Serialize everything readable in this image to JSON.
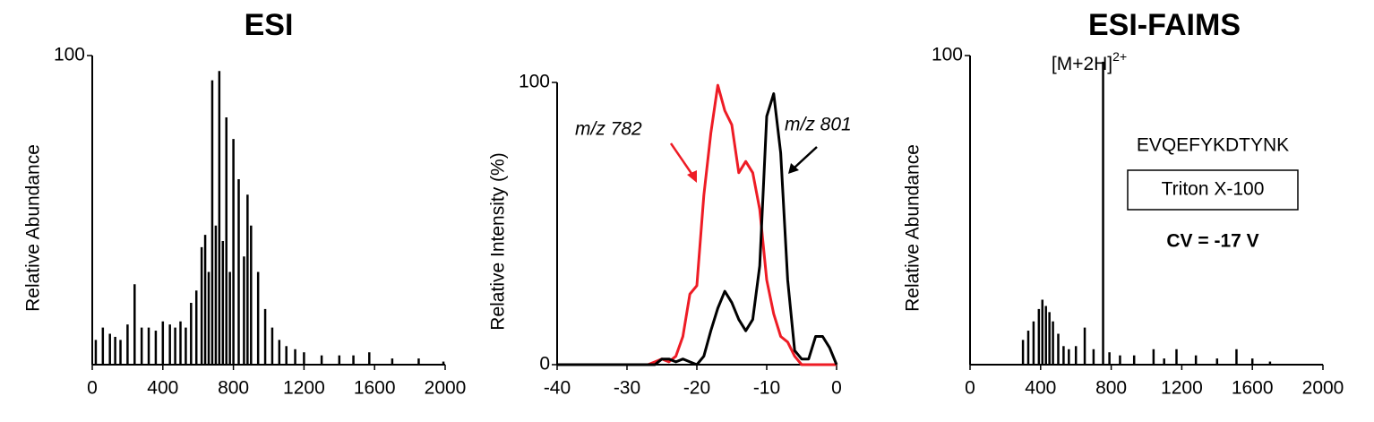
{
  "chart_data": [
    {
      "type": "spectrum",
      "title": "ESI",
      "ylabel": "Relative Abundance",
      "color": "#000000",
      "x": [
        20,
        60,
        100,
        130,
        160,
        200,
        240,
        280,
        320,
        360,
        400,
        440,
        470,
        500,
        530,
        560,
        590,
        620,
        640,
        660,
        680,
        700,
        720,
        740,
        760,
        780,
        800,
        830,
        860,
        880,
        900,
        940,
        980,
        1020,
        1060,
        1100,
        1150,
        1200,
        1300,
        1400,
        1480,
        1570,
        1700,
        1850,
        1990
      ],
      "values": [
        8,
        12,
        10,
        9,
        8,
        13,
        26,
        12,
        12,
        11,
        14,
        13,
        12,
        14,
        12,
        20,
        24,
        38,
        42,
        30,
        92,
        45,
        95,
        40,
        80,
        30,
        73,
        60,
        35,
        55,
        45,
        30,
        18,
        12,
        8,
        6,
        5,
        4,
        3,
        3,
        3,
        4,
        2,
        2,
        1
      ],
      "xlim": [
        0,
        2000
      ],
      "xticks": [
        0,
        400,
        800,
        1200,
        1600,
        2000
      ],
      "ylim": [
        0,
        100
      ],
      "yticks": [
        100
      ]
    },
    {
      "type": "line",
      "ylabel": "Relative Intensity (%)",
      "x": [
        -40,
        -39,
        -38,
        -37,
        -36,
        -35,
        -34,
        -33,
        -32,
        -31,
        -30,
        -29,
        -28,
        -27,
        -26,
        -25,
        -24,
        -23,
        -22,
        -21,
        -20,
        -19,
        -18,
        -17,
        -16,
        -15,
        -14,
        -13,
        -12,
        -11,
        -10,
        -9,
        -8,
        -7,
        -6,
        -5,
        -4,
        -3,
        -2,
        -1,
        0
      ],
      "series": [
        {
          "name": "m/z 782",
          "color": "#ee1c25",
          "values": [
            0,
            0,
            0,
            0,
            0,
            0,
            0,
            0,
            0,
            0,
            0,
            0,
            0,
            0,
            1,
            2,
            1,
            3,
            10,
            25,
            28,
            60,
            82,
            99,
            90,
            85,
            68,
            72,
            68,
            55,
            30,
            18,
            10,
            8,
            3,
            0,
            0,
            0,
            0,
            0,
            0
          ]
        },
        {
          "name": "m/z 801",
          "color": "#000000",
          "values": [
            0,
            0,
            0,
            0,
            0,
            0,
            0,
            0,
            0,
            0,
            0,
            0,
            0,
            0,
            0,
            2,
            2,
            1,
            2,
            1,
            0,
            3,
            12,
            20,
            26,
            22,
            16,
            12,
            16,
            35,
            88,
            96,
            75,
            30,
            5,
            2,
            2,
            10,
            10,
            6,
            0
          ]
        }
      ],
      "xlim": [
        -40,
        0
      ],
      "xticks": [
        -40,
        -30,
        -20,
        -10,
        0
      ],
      "ylim": [
        0,
        100
      ],
      "yticks": [
        0,
        100
      ]
    },
    {
      "type": "spectrum",
      "title": "ESI-FAIMS",
      "ylabel": "Relative Abundance",
      "color": "#000000",
      "x": [
        300,
        330,
        360,
        390,
        410,
        430,
        450,
        470,
        500,
        530,
        560,
        600,
        650,
        700,
        754,
        790,
        850,
        930,
        1040,
        1100,
        1170,
        1280,
        1400,
        1510,
        1600,
        1700
      ],
      "values": [
        8,
        11,
        14,
        18,
        21,
        19,
        17,
        14,
        10,
        6,
        5,
        6,
        12,
        5,
        98,
        4,
        3,
        3,
        5,
        2,
        5,
        3,
        2,
        5,
        2,
        1
      ],
      "xlim": [
        0,
        2000
      ],
      "xticks": [
        0,
        400,
        800,
        1200,
        1600,
        2000
      ],
      "ylim": [
        0,
        100
      ],
      "yticks": [
        100
      ],
      "peak_label": {
        "text": "[M+2H]",
        "superscript": "2+"
      },
      "peptide": "EVQEFYKDTYNK",
      "boxed_label": "Triton X-100",
      "condition": "CV = -17 V"
    }
  ]
}
